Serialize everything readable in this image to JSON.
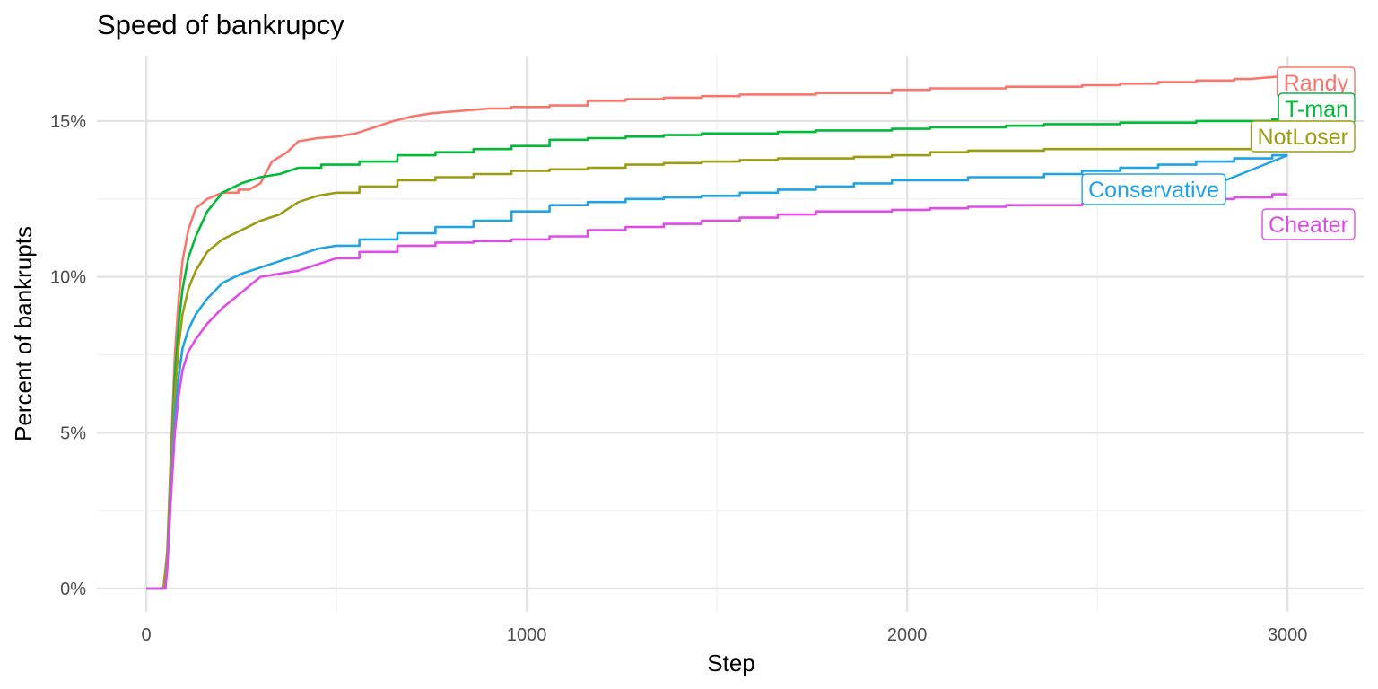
{
  "chart_data": {
    "type": "line",
    "title": "Speed of bankrupcy",
    "xlabel": "Step",
    "ylabel": "Percent of bankrupts",
    "xlim": [
      -130,
      3200
    ],
    "ylim": [
      -0.0075,
      0.171
    ],
    "x_ticks": [
      0,
      1000,
      2000,
      3000
    ],
    "x_tick_labels": [
      "0",
      "1000",
      "2000",
      "3000"
    ],
    "y_ticks": [
      0,
      0.05,
      0.1,
      0.15
    ],
    "y_tick_labels": [
      "0%",
      "5%",
      "10%",
      "15%"
    ],
    "grid": true,
    "legend": "direct labels at line ends",
    "series": [
      {
        "name": "Randy",
        "color": "#F8766D",
        "x": [
          0,
          45,
          55,
          65,
          75,
          85,
          95,
          110,
          130,
          160,
          200,
          270,
          300,
          330,
          370,
          400,
          450,
          500,
          550,
          600,
          650,
          700,
          750,
          800,
          850,
          900,
          1000,
          1100,
          1200,
          1300,
          1400,
          1500,
          1600,
          1700,
          1800,
          1900,
          2000,
          2100,
          2200,
          2300,
          2400,
          2500,
          2600,
          2700,
          2800,
          2900,
          2950,
          3000
        ],
        "values": [
          0,
          0,
          0.012,
          0.045,
          0.075,
          0.093,
          0.105,
          0.115,
          0.122,
          0.125,
          0.127,
          0.128,
          0.13,
          0.137,
          0.14,
          0.1435,
          0.1445,
          0.145,
          0.146,
          0.148,
          0.15,
          0.1515,
          0.1525,
          0.153,
          0.1535,
          0.154,
          0.1545,
          0.155,
          0.1565,
          0.157,
          0.1575,
          0.158,
          0.1585,
          0.1585,
          0.159,
          0.159,
          0.16,
          0.1605,
          0.1605,
          0.161,
          0.161,
          0.1615,
          0.162,
          0.1625,
          0.163,
          0.1635,
          0.164,
          0.1645
        ]
      },
      {
        "name": "T-man",
        "color": "#00BA38",
        "x": [
          0,
          45,
          55,
          65,
          75,
          85,
          95,
          110,
          130,
          160,
          200,
          250,
          300,
          350,
          400,
          500,
          600,
          700,
          800,
          900,
          1000,
          1100,
          1200,
          1300,
          1400,
          1500,
          1600,
          1700,
          1800,
          1900,
          2000,
          2100,
          2200,
          2300,
          2400,
          2500,
          2600,
          2700,
          2800,
          2900,
          3000
        ],
        "values": [
          0,
          0,
          0.01,
          0.04,
          0.068,
          0.085,
          0.096,
          0.106,
          0.113,
          0.121,
          0.127,
          0.13,
          0.132,
          0.133,
          0.135,
          0.136,
          0.137,
          0.139,
          0.14,
          0.141,
          0.142,
          0.144,
          0.1445,
          0.145,
          0.1455,
          0.146,
          0.146,
          0.1465,
          0.147,
          0.147,
          0.1475,
          0.148,
          0.148,
          0.1485,
          0.149,
          0.149,
          0.1495,
          0.1495,
          0.15,
          0.15,
          0.1505
        ]
      },
      {
        "name": "NotLoser",
        "color": "#9C9C12",
        "x": [
          0,
          45,
          55,
          65,
          75,
          85,
          95,
          110,
          130,
          160,
          200,
          250,
          300,
          350,
          400,
          450,
          500,
          600,
          700,
          800,
          900,
          1000,
          1100,
          1200,
          1300,
          1400,
          1500,
          1600,
          1700,
          1800,
          1900,
          2000,
          2100,
          2200,
          2300,
          2400,
          2500,
          2600,
          2700,
          2800,
          2900,
          3000
        ],
        "values": [
          0,
          0,
          0.01,
          0.038,
          0.062,
          0.078,
          0.088,
          0.096,
          0.102,
          0.108,
          0.112,
          0.115,
          0.118,
          0.12,
          0.124,
          0.126,
          0.127,
          0.129,
          0.131,
          0.132,
          0.133,
          0.134,
          0.1345,
          0.135,
          0.136,
          0.1365,
          0.137,
          0.1375,
          0.138,
          0.138,
          0.1385,
          0.139,
          0.14,
          0.1405,
          0.1405,
          0.141,
          0.141,
          0.141,
          0.141,
          0.141,
          0.141,
          0.141
        ]
      },
      {
        "name": "Conservative",
        "color": "#1FA2E6",
        "x": [
          0,
          45,
          50,
          55,
          65,
          75,
          85,
          95,
          110,
          130,
          160,
          200,
          250,
          300,
          350,
          400,
          450,
          500,
          600,
          700,
          800,
          900,
          1000,
          1100,
          1200,
          1300,
          1400,
          1500,
          1600,
          1700,
          1800,
          1900,
          2000,
          2100,
          2200,
          2300,
          2400,
          2500,
          2600,
          2700,
          2800,
          2900,
          3000
        ],
        "values": [
          0,
          0,
          0,
          0.007,
          0.032,
          0.055,
          0.068,
          0.077,
          0.083,
          0.088,
          0.093,
          0.098,
          0.101,
          0.103,
          0.105,
          0.107,
          0.109,
          0.11,
          0.112,
          0.114,
          0.116,
          0.118,
          0.121,
          0.123,
          0.124,
          0.125,
          0.1255,
          0.126,
          0.127,
          0.128,
          0.129,
          0.13,
          0.131,
          0.131,
          0.132,
          0.132,
          0.133,
          0.134,
          0.135,
          0.136,
          0.137,
          0.138,
          0.139
        ]
      },
      {
        "name": "Cheater",
        "color": "#E04BE8",
        "x": [
          0,
          45,
          50,
          55,
          65,
          75,
          85,
          95,
          110,
          130,
          160,
          200,
          250,
          300,
          350,
          400,
          450,
          500,
          600,
          700,
          800,
          900,
          1000,
          1100,
          1200,
          1300,
          1400,
          1500,
          1600,
          1700,
          1800,
          1900,
          2000,
          2100,
          2200,
          2300,
          2400,
          2500,
          2600,
          2700,
          2800,
          2900,
          3000
        ],
        "values": [
          0,
          0,
          0,
          0.006,
          0.03,
          0.05,
          0.062,
          0.07,
          0.076,
          0.08,
          0.085,
          0.09,
          0.095,
          0.1,
          0.101,
          0.102,
          0.104,
          0.106,
          0.108,
          0.11,
          0.111,
          0.1115,
          0.112,
          0.113,
          0.115,
          0.116,
          0.117,
          0.118,
          0.119,
          0.12,
          0.121,
          0.121,
          0.1215,
          0.122,
          0.1225,
          0.123,
          0.123,
          0.1235,
          0.124,
          0.1245,
          0.125,
          0.1255,
          0.1265
        ]
      }
    ]
  },
  "labels": [
    {
      "text": "Randy",
      "color": "#F8766D"
    },
    {
      "text": "T-man",
      "color": "#00BA38"
    },
    {
      "text": "NotLoser",
      "color": "#9C9C12"
    },
    {
      "text": "Conservative",
      "color": "#1FA2E6"
    },
    {
      "text": "Cheater",
      "color": "#E04BE8"
    }
  ]
}
